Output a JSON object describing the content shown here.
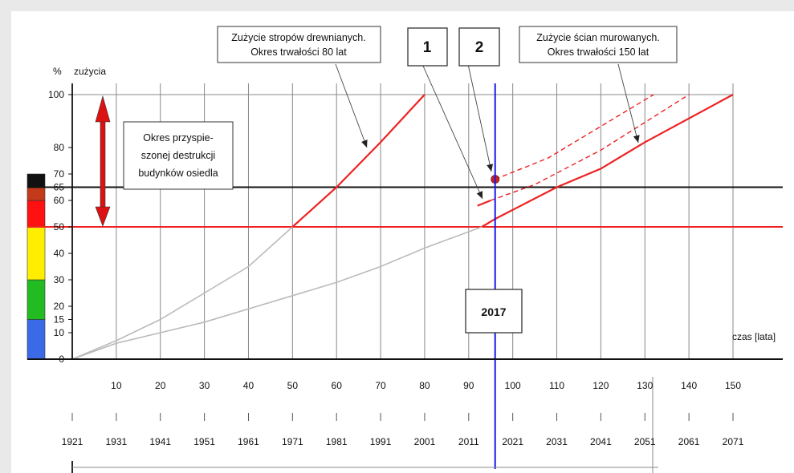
{
  "chart_data": {
    "type": "line",
    "xlabel": "czas [lata]",
    "ylabel_symbol": "%",
    "ylabel": "zużycia",
    "x_ticks": [
      10,
      20,
      30,
      40,
      50,
      60,
      70,
      80,
      90,
      100,
      110,
      120,
      130,
      140,
      150
    ],
    "year_ticks": [
      "1921",
      "1931",
      "1941",
      "1951",
      "1961",
      "1971",
      "1981",
      "1991",
      "2001",
      "2011",
      "2021",
      "2031",
      "2041",
      "2051",
      "2061",
      "2071"
    ],
    "y_ticks": [
      0,
      10,
      15,
      20,
      30,
      40,
      50,
      60,
      65,
      70,
      80,
      100
    ],
    "xlim": [
      0,
      150
    ],
    "ylim": [
      0,
      100
    ],
    "thresholds": [
      {
        "y": 50,
        "color": "#ee2222"
      },
      {
        "y": 65,
        "color": "#111111"
      }
    ],
    "year_marker": {
      "x": 96,
      "label": "2017",
      "color": "#1a1aee"
    },
    "series": [
      {
        "color": "#bbbbbb",
        "style": "solid",
        "points": [
          [
            0,
            0
          ],
          [
            10,
            7
          ],
          [
            20,
            15
          ],
          [
            30,
            25
          ],
          [
            40,
            35
          ],
          [
            50,
            50
          ]
        ]
      },
      {
        "color": "#ee2222",
        "style": "solid",
        "points": [
          [
            50,
            50
          ],
          [
            60,
            65
          ],
          [
            70,
            82
          ],
          [
            80,
            100
          ]
        ]
      },
      {
        "color": "#bbbbbb",
        "style": "solid",
        "points": [
          [
            0,
            0
          ],
          [
            10,
            6
          ],
          [
            20,
            10
          ],
          [
            30,
            14
          ],
          [
            40,
            19
          ],
          [
            50,
            24
          ],
          [
            60,
            29
          ],
          [
            70,
            35
          ],
          [
            80,
            42
          ],
          [
            93,
            50
          ]
        ]
      },
      {
        "color": "#ee2222",
        "style": "solid",
        "points": [
          [
            93,
            50
          ],
          [
            96,
            53
          ],
          [
            110,
            65
          ],
          [
            120,
            72
          ],
          [
            130,
            82
          ],
          [
            150,
            100
          ]
        ]
      },
      {
        "color": "#ee2222",
        "style": "solid",
        "points": [
          [
            92,
            58
          ],
          [
            95,
            60
          ]
        ]
      },
      {
        "color": "#ee2222",
        "style": "dashed",
        "points": [
          [
            95,
            60
          ],
          [
            105,
            66
          ],
          [
            120,
            79
          ],
          [
            140,
            100
          ]
        ]
      },
      {
        "color": "#ee2222",
        "style": "dashed",
        "points": [
          [
            96,
            68
          ],
          [
            108,
            76
          ],
          [
            132,
            100
          ]
        ]
      }
    ],
    "point": {
      "x": 96,
      "y": 68,
      "color": "#cc2222"
    },
    "color_bar": [
      {
        "from": 0,
        "to": 15,
        "color": "#3b6ae6"
      },
      {
        "from": 15,
        "to": 30,
        "color": "#22bb22"
      },
      {
        "from": 30,
        "to": 50,
        "color": "#ffee00"
      },
      {
        "from": 50,
        "to": 60,
        "color": "#ff1111"
      },
      {
        "from": 60,
        "to": 65,
        "color": "#c23a1a"
      },
      {
        "from": 65,
        "to": 70,
        "color": "#111111"
      }
    ],
    "annotations": {
      "stropy": [
        "Zużycie stropów drewnianych.",
        "Okres trwałości 80 lat"
      ],
      "sciany": [
        "Zużycie ścian murowanych.",
        "Okres trwałości 150 lat"
      ],
      "okres": [
        "Okres przyspie-",
        "szonej destrukcji",
        "budynków osiedla"
      ],
      "label_1": "1",
      "label_2": "2"
    }
  }
}
